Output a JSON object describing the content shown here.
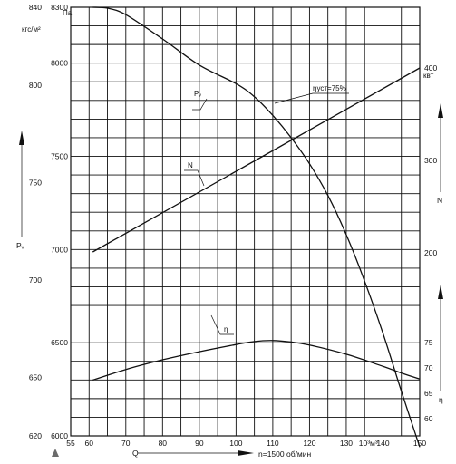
{
  "chart_data": {
    "type": "line",
    "x_axis": {
      "label": "Q",
      "ticks": [
        "55",
        "60",
        "70",
        "80",
        "90",
        "100",
        "110",
        "120",
        "130",
        "10³м³",
        "140",
        "150"
      ],
      "range": [
        55,
        150
      ],
      "caption": "n=1500 об/мин"
    },
    "left_axis_pa": {
      "unit": "Па",
      "ticks": [
        "8300",
        "8000",
        "7500",
        "7000",
        "6500",
        "6000"
      ],
      "range": [
        6000,
        8300
      ]
    },
    "left_axis_kgf": {
      "unit": "кгс/м²",
      "ticks": [
        "840",
        "800",
        "750",
        "700",
        "650",
        "620"
      ],
      "label": "Pᵥ"
    },
    "right_axis_n": {
      "unit": "квт",
      "ticks": [
        "400",
        "300",
        "200"
      ],
      "label": "N",
      "range": [
        155,
        405
      ]
    },
    "right_axis_eta": {
      "ticks": [
        "75",
        "70",
        "65",
        "60"
      ],
      "label": "η",
      "range": [
        60,
        79
      ]
    },
    "series": [
      {
        "name": "Pᵥ",
        "axis": "left_axis_pa",
        "x": [
          61,
          65,
          70,
          80,
          90,
          100,
          105,
          110,
          115,
          120,
          125,
          130,
          135,
          140,
          145,
          150
        ],
        "values": [
          8300,
          8295,
          8260,
          8130,
          7990,
          7890,
          7820,
          7720,
          7600,
          7460,
          7290,
          7080,
          6830,
          6550,
          6240,
          5940
        ]
      },
      {
        "name": "N",
        "axis": "right_axis_n",
        "x": [
          61,
          150
        ],
        "values": [
          201,
          400
        ]
      },
      {
        "name": "η",
        "axis": "right_axis_eta",
        "x": [
          61,
          70,
          80,
          90,
          100,
          105,
          110,
          115,
          120,
          130,
          140,
          145,
          150
        ],
        "values": [
          67.6,
          69.7,
          71.6,
          73.2,
          74.6,
          75.2,
          75.4,
          75.1,
          74.5,
          72.7,
          70.3,
          69.0,
          67.8
        ]
      }
    ],
    "annotations": [
      {
        "text": "ηуст=75%",
        "series": "Pᵥ",
        "at_x": 110
      },
      {
        "text": "Pᵥ",
        "series": "Pᵥ"
      },
      {
        "text": "N",
        "series": "N"
      },
      {
        "text": "η",
        "series": "η"
      }
    ],
    "grid": true
  }
}
